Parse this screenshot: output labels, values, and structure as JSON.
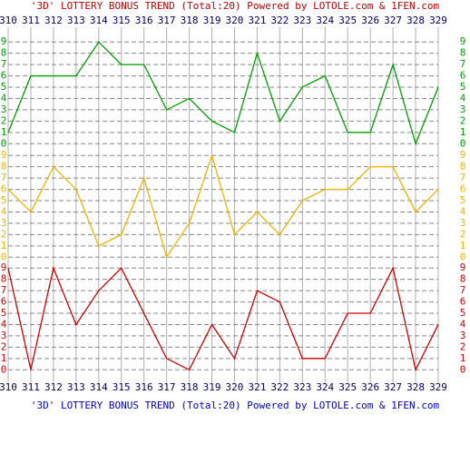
{
  "chart_data": {
    "type": "line",
    "title": "'3D' LOTTERY BONUS TREND (Total:20)  Powered by LOTOLE.com & 1FEN.com",
    "bottom_title": "'3D' LOTTERY BONUS TREND (Total:20)  Powered by LOTOLE.com & 1FEN.com",
    "x": [
      310,
      311,
      312,
      313,
      314,
      315,
      316,
      317,
      318,
      319,
      320,
      321,
      322,
      323,
      324,
      325,
      326,
      327,
      328,
      329
    ],
    "xlim": [
      310,
      329
    ],
    "ylim": [
      -0.5,
      9.5
    ],
    "yticks": [
      0,
      1,
      2,
      3,
      4,
      5,
      6,
      7,
      8,
      9
    ],
    "grid": true,
    "series": [
      {
        "color": "#00a000",
        "values": [
          1,
          6,
          6,
          6,
          9,
          7,
          7,
          3,
          4,
          2,
          1,
          8,
          2,
          5,
          6,
          1,
          1,
          7,
          0,
          5
        ]
      },
      {
        "color": "#f0b400",
        "values": [
          6,
          4,
          8,
          6,
          1,
          2,
          7,
          0,
          3,
          9,
          2,
          4,
          2,
          5,
          6,
          6,
          8,
          8,
          4,
          6
        ]
      },
      {
        "color": "#d00000",
        "values": [
          9,
          0,
          9,
          4,
          7,
          9,
          5,
          1,
          0,
          4,
          1,
          7,
          6,
          1,
          1,
          5,
          5,
          9,
          0,
          4
        ]
      }
    ]
  }
}
